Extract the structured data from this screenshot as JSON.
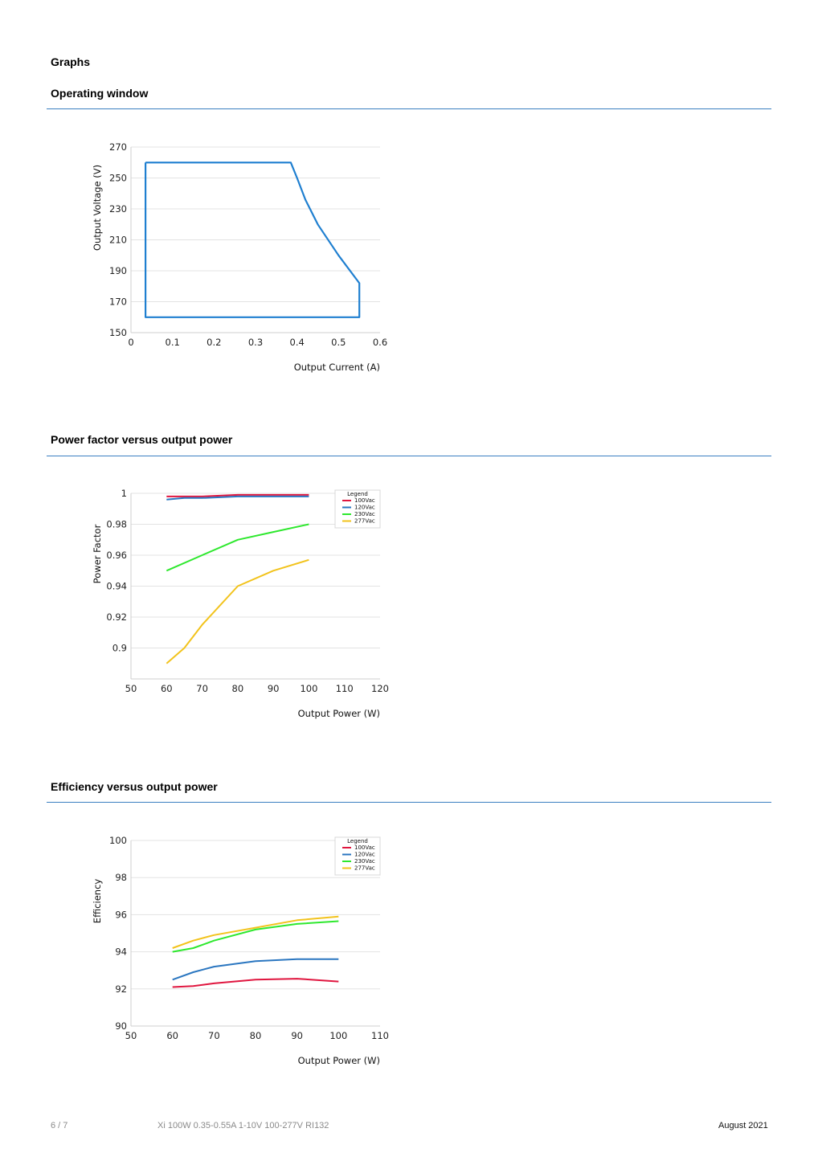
{
  "page": {
    "heading": "Graphs",
    "sections": [
      {
        "title": "Operating window"
      },
      {
        "title": "Power factor versus output power"
      },
      {
        "title": "Efficiency versus output power"
      }
    ]
  },
  "footer": {
    "page_number": "6 / 7",
    "product": "Xi 100W 0.35-0.55A 1-10V 100-277V RI132",
    "date": "August 2021"
  },
  "colors": {
    "rule": "#3b7fc1",
    "window_line": "#1f7fd0",
    "100Vac": "#e0163f",
    "120Vac": "#2a76c0",
    "230Vac": "#2ee82e",
    "277Vac": "#f2c31c"
  },
  "chart_data": [
    {
      "type": "line",
      "xlabel": "Output Current (A)",
      "ylabel": "Output Voltage (V)",
      "xlim": [
        0,
        0.6
      ],
      "ylim": [
        150,
        270
      ],
      "xticks": [
        "0",
        "0.1",
        "0.2",
        "0.3",
        "0.4",
        "0.5",
        "0.6"
      ],
      "yticks": [
        "150",
        "170",
        "190",
        "210",
        "230",
        "250",
        "270"
      ],
      "series": [
        {
          "x": [
            0.035,
            0.385,
            0.4,
            0.42,
            0.45,
            0.5,
            0.55,
            0.55,
            0.035,
            0.035
          ],
          "y": [
            260,
            260,
            250,
            236,
            220,
            200,
            182,
            160,
            160,
            260
          ]
        }
      ]
    },
    {
      "type": "line",
      "xlabel": "Output Power (W)",
      "ylabel": "Power Factor",
      "xlim": [
        50,
        120
      ],
      "ylim": [
        0.88,
        1.0
      ],
      "xticks": [
        "50",
        "60",
        "70",
        "80",
        "90",
        "100",
        "110",
        "120"
      ],
      "yticks": [
        "0.9",
        "0.92",
        "0.94",
        "0.96",
        "0.98",
        "1"
      ],
      "legend_title": "Legend",
      "series": [
        {
          "name": "100Vac",
          "x": [
            60,
            70,
            80,
            90,
            100
          ],
          "y": [
            0.998,
            0.998,
            0.999,
            0.999,
            0.999
          ]
        },
        {
          "name": "120Vac",
          "x": [
            60,
            65,
            70,
            80,
            90,
            100
          ],
          "y": [
            0.996,
            0.997,
            0.997,
            0.998,
            0.998,
            0.998
          ]
        },
        {
          "name": "230Vac",
          "x": [
            60,
            70,
            80,
            90,
            100
          ],
          "y": [
            0.95,
            0.96,
            0.97,
            0.975,
            0.98
          ]
        },
        {
          "name": "277Vac",
          "x": [
            60,
            65,
            70,
            80,
            90,
            100
          ],
          "y": [
            0.89,
            0.9,
            0.915,
            0.94,
            0.95,
            0.957
          ]
        }
      ]
    },
    {
      "type": "line",
      "xlabel": "Output Power (W)",
      "ylabel": "Efficiency",
      "xlim": [
        50,
        110
      ],
      "ylim": [
        90,
        100
      ],
      "xticks": [
        "50",
        "60",
        "70",
        "80",
        "90",
        "100",
        "110"
      ],
      "yticks": [
        "90",
        "92",
        "94",
        "96",
        "98",
        "100"
      ],
      "legend_title": "Legend",
      "series": [
        {
          "name": "100Vac",
          "x": [
            60,
            65,
            70,
            80,
            90,
            100
          ],
          "y": [
            92.1,
            92.15,
            92.3,
            92.5,
            92.55,
            92.4
          ]
        },
        {
          "name": "120Vac",
          "x": [
            60,
            65,
            70,
            80,
            90,
            100
          ],
          "y": [
            92.5,
            92.9,
            93.2,
            93.5,
            93.6,
            93.6
          ]
        },
        {
          "name": "230Vac",
          "x": [
            60,
            65,
            70,
            80,
            90,
            100
          ],
          "y": [
            94.0,
            94.2,
            94.6,
            95.2,
            95.5,
            95.65
          ]
        },
        {
          "name": "277Vac",
          "x": [
            60,
            65,
            70,
            80,
            90,
            100
          ],
          "y": [
            94.2,
            94.6,
            94.9,
            95.3,
            95.7,
            95.9
          ]
        }
      ]
    }
  ]
}
